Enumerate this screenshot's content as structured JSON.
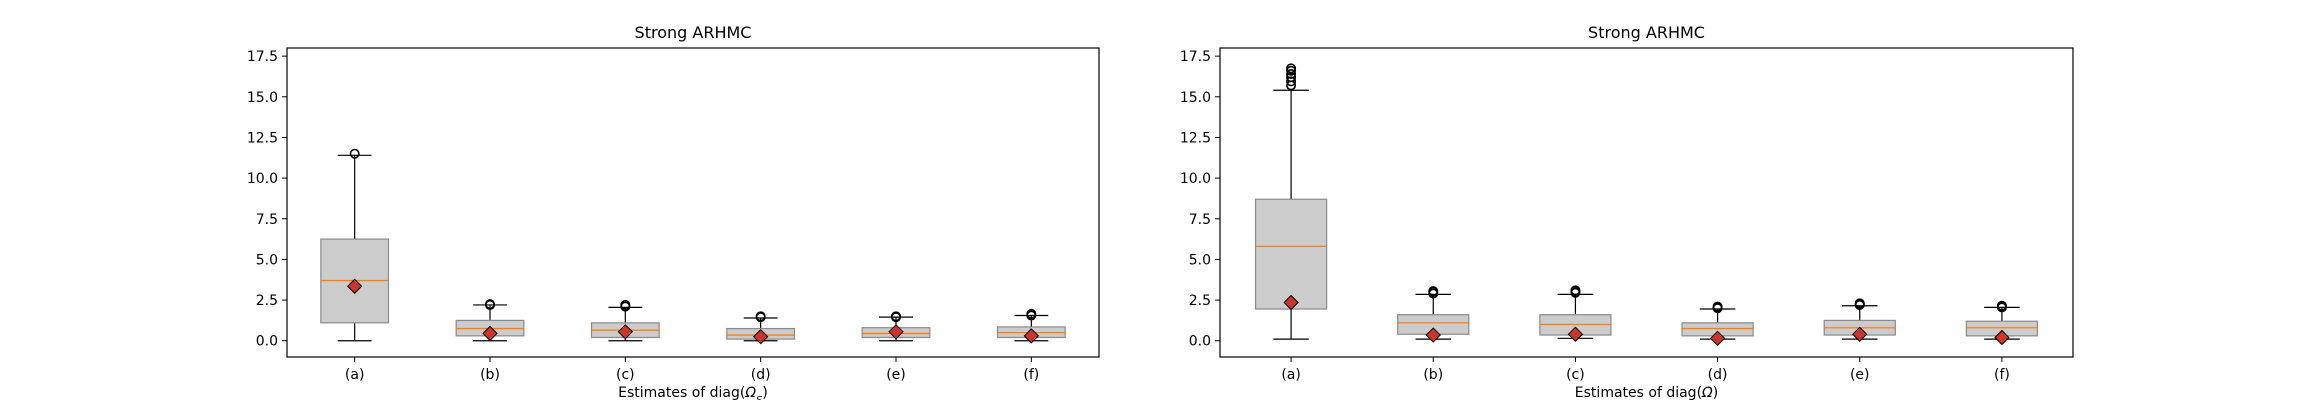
{
  "chart_data": [
    {
      "type": "box",
      "title": "Strong  ARHMC",
      "xlabel": "Estimates of diag(",
      "xlabel_symbol": "Ω",
      "xlabel_subscript": "S",
      "xlabel_suffix": ")",
      "ylim": [
        -1,
        18
      ],
      "yticks": [
        "0.0",
        "2.5",
        "5.0",
        "7.5",
        "10.0",
        "12.5",
        "15.0",
        "17.5"
      ],
      "categories": [
        "(a)",
        "(b)",
        "(c)",
        "(d)",
        "(e)",
        "(f)"
      ],
      "boxes": [
        {
          "q1": 1.1,
          "median": 3.7,
          "q3": 6.25,
          "whisker_low": 0.0,
          "whisker_high": 11.4,
          "mean": 3.35,
          "fliers": [
            11.5
          ]
        },
        {
          "q1": 0.3,
          "median": 0.75,
          "q3": 1.25,
          "whisker_low": 0.0,
          "whisker_high": 2.2,
          "mean": 0.45,
          "fliers": [
            2.2,
            2.25
          ]
        },
        {
          "q1": 0.2,
          "median": 0.65,
          "q3": 1.1,
          "whisker_low": 0.0,
          "whisker_high": 2.05,
          "mean": 0.55,
          "fliers": [
            2.1,
            2.2
          ]
        },
        {
          "q1": 0.1,
          "median": 0.35,
          "q3": 0.75,
          "whisker_low": 0.0,
          "whisker_high": 1.4,
          "mean": 0.25,
          "fliers": [
            1.45,
            1.5
          ]
        },
        {
          "q1": 0.2,
          "median": 0.45,
          "q3": 0.8,
          "whisker_low": 0.0,
          "whisker_high": 1.45,
          "mean": 0.55,
          "fliers": [
            1.45,
            1.5
          ]
        },
        {
          "q1": 0.2,
          "median": 0.5,
          "q3": 0.85,
          "whisker_low": 0.0,
          "whisker_high": 1.55,
          "mean": 0.3,
          "fliers": [
            1.55,
            1.65
          ]
        }
      ]
    },
    {
      "type": "box",
      "title": "Strong ARHMC",
      "xlabel": "Estimates of diag(",
      "xlabel_symbol": "Ω",
      "xlabel_subscript": "",
      "xlabel_suffix": ")",
      "ylim": [
        -1,
        18
      ],
      "yticks": [
        "0.0",
        "2.5",
        "5.0",
        "7.5",
        "10.0",
        "12.5",
        "15.0",
        "17.5"
      ],
      "categories": [
        "(a)",
        "(b)",
        "(c)",
        "(d)",
        "(e)",
        "(f)"
      ],
      "boxes": [
        {
          "q1": 1.95,
          "median": 5.8,
          "q3": 8.7,
          "whisker_low": 0.1,
          "whisker_high": 15.4,
          "mean": 2.35,
          "fliers": [
            15.7,
            15.95,
            16.2,
            16.4,
            16.6,
            16.75
          ]
        },
        {
          "q1": 0.4,
          "median": 1.1,
          "q3": 1.6,
          "whisker_low": 0.1,
          "whisker_high": 2.85,
          "mean": 0.35,
          "fliers": [
            2.9,
            3.0,
            3.05
          ]
        },
        {
          "q1": 0.35,
          "median": 1.0,
          "q3": 1.6,
          "whisker_low": 0.15,
          "whisker_high": 2.85,
          "mean": 0.4,
          "fliers": [
            2.95,
            3.05,
            3.1
          ]
        },
        {
          "q1": 0.3,
          "median": 0.75,
          "q3": 1.1,
          "whisker_low": 0.1,
          "whisker_high": 1.95,
          "mean": 0.15,
          "fliers": [
            2.0,
            2.05,
            2.1
          ]
        },
        {
          "q1": 0.35,
          "median": 0.8,
          "q3": 1.25,
          "whisker_low": 0.1,
          "whisker_high": 2.15,
          "mean": 0.4,
          "fliers": [
            2.2,
            2.25,
            2.3
          ]
        },
        {
          "q1": 0.3,
          "median": 0.8,
          "q3": 1.2,
          "whisker_low": 0.1,
          "whisker_high": 2.05,
          "mean": 0.2,
          "fliers": [
            2.05,
            2.15
          ]
        }
      ]
    }
  ],
  "colors": {
    "box_fill": "#cccccc",
    "median_line": "#ff7f0e",
    "mean_marker": "#c9372c"
  }
}
